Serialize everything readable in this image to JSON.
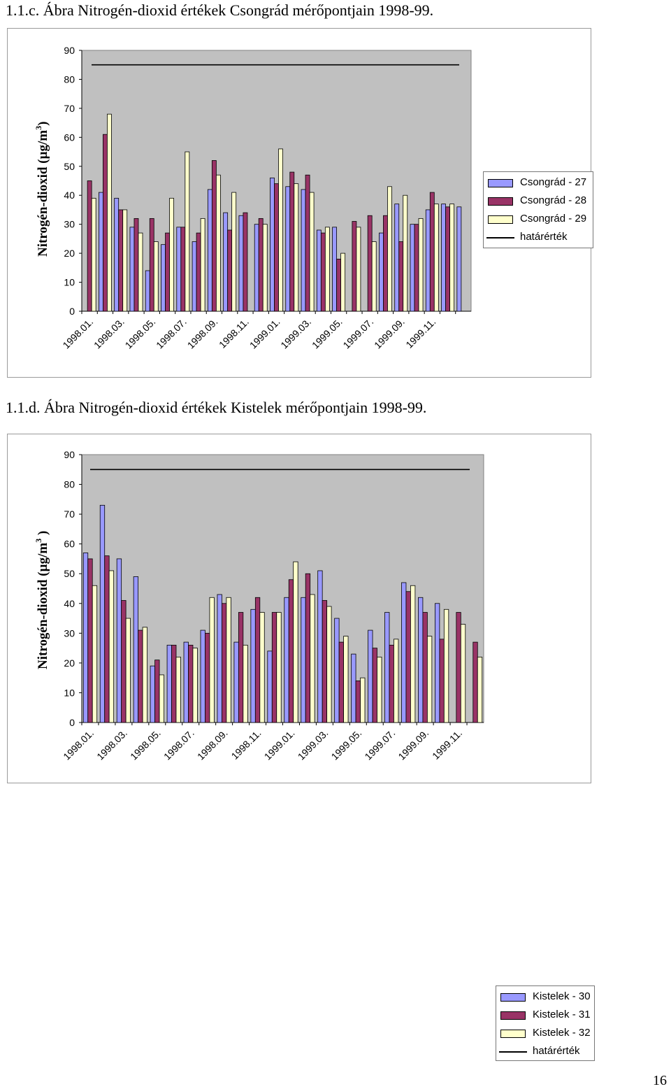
{
  "page": {
    "title_1": "1.1.c. Ábra  Nitrogén-dioxid értékek Csongrád mérőpontjain 1998-99.",
    "title_2": "1.1.d. Ábra  Nitrogén-dioxid értékek Kistelek mérőpontjain 1998-99.",
    "page_number": "16"
  },
  "colors": {
    "plot_area": "#c0c0c0",
    "series_1": "#9999ff",
    "series_2": "#993366",
    "series_3": "#ffffcc",
    "limit_line": "#000000"
  },
  "chart_data": [
    {
      "type": "bar",
      "title": "",
      "ylabel_main": "Nitrogén-dioxid (µg/m",
      "ylabel_sup": "3",
      "ylabel_close": ")",
      "xlabel": "",
      "ylim": [
        0,
        90
      ],
      "yticks": [
        "0",
        "10",
        "20",
        "30",
        "40",
        "50",
        "60",
        "70",
        "80",
        "90"
      ],
      "x_tick_labels": [
        "1998.01.",
        "1998.03.",
        "1998.05.",
        "1998.07.",
        "1998.09.",
        "1998.11.",
        "1999.01.",
        "1999.03.",
        "1999.05.",
        "1999.07.",
        "1999.09.",
        "1999.11."
      ],
      "grid": false,
      "legend_position": "right",
      "limit_value": 85,
      "limit_name": "határérték",
      "series": [
        {
          "name": "Csongrád - 27",
          "values": [
            null,
            41,
            39,
            29,
            14,
            23,
            29,
            24,
            42,
            34,
            33,
            30,
            46,
            43,
            42,
            28,
            29,
            null,
            null,
            27,
            37,
            30,
            35,
            37,
            36
          ]
        },
        {
          "name": "Csongrád - 28",
          "values": [
            45,
            61,
            35,
            32,
            32,
            27,
            29,
            27,
            52,
            28,
            34,
            32,
            44,
            48,
            47,
            27,
            18,
            31,
            33,
            33,
            24,
            30,
            41,
            36,
            null
          ]
        },
        {
          "name": "Csongrád - 29",
          "values": [
            39,
            68,
            35,
            27,
            24,
            39,
            55,
            32,
            47,
            41,
            null,
            30,
            56,
            44,
            41,
            29,
            20,
            29,
            24,
            43,
            40,
            32,
            37,
            37,
            null
          ]
        }
      ]
    },
    {
      "type": "bar",
      "title": "",
      "ylabel_main": "Nitrogén-dioxid (µg/m",
      "ylabel_sup": "3",
      "ylabel_close": " )",
      "xlabel": "",
      "ylim": [
        0,
        90
      ],
      "yticks": [
        "0",
        "10",
        "20",
        "30",
        "40",
        "50",
        "60",
        "70",
        "80",
        "90"
      ],
      "x_tick_labels": [
        "1998.01.",
        "1998.03.",
        "1998.05.",
        "1998.07.",
        "1998.09.",
        "1998.11.",
        "1999.01.",
        "1999.03.",
        "1999.05.",
        "1999.07.",
        "1999.09.",
        "1999.11."
      ],
      "grid": false,
      "legend_position": "right",
      "limit_value": 85,
      "limit_name": "határérték",
      "series": [
        {
          "name": "Kistelek - 30",
          "values": [
            57,
            73,
            55,
            49,
            19,
            26,
            27,
            31,
            43,
            27,
            38,
            24,
            42,
            42,
            51,
            35,
            23,
            31,
            37,
            47,
            42,
            40,
            null,
            null
          ]
        },
        {
          "name": "Kistelek - 31",
          "values": [
            55,
            56,
            41,
            31,
            21,
            26,
            26,
            30,
            40,
            37,
            42,
            37,
            48,
            50,
            41,
            27,
            14,
            25,
            26,
            44,
            37,
            28,
            37,
            27
          ]
        },
        {
          "name": "Kistelek - 32",
          "values": [
            46,
            51,
            35,
            32,
            16,
            22,
            25,
            42,
            42,
            26,
            37,
            37,
            54,
            43,
            39,
            29,
            15,
            22,
            28,
            46,
            29,
            38,
            33,
            22
          ]
        }
      ]
    }
  ]
}
